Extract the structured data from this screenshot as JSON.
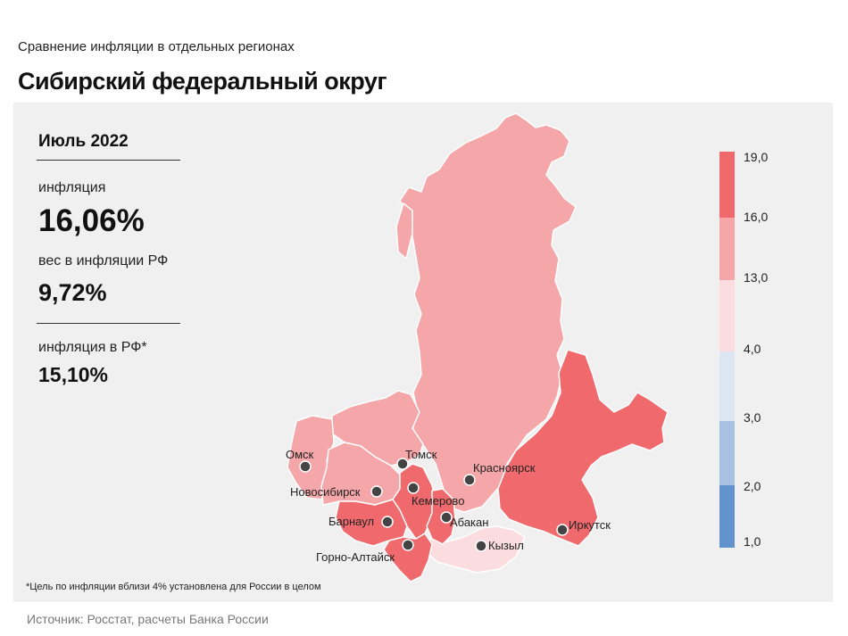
{
  "header": {
    "subtitle": "Сравнение инфляции в отдельных регионах",
    "title": "Сибирский федеральный округ"
  },
  "stats": {
    "period": "Июль 2022",
    "inflation_label": "инфляция",
    "inflation_value": "16,06%",
    "weight_label": "вес в инфляции РФ",
    "weight_value": "9,72%",
    "rf_label": "инфляция в РФ*",
    "rf_value": "15,10%"
  },
  "footnote": "*Цель по инфляции вблизи 4% установлена для России в целом",
  "source": "Источник: Росстат, расчеты Банка России",
  "legend": {
    "ticks": [
      "19,0",
      "16,0",
      "13,0",
      "4,0",
      "3,0",
      "2,0",
      "1,0"
    ],
    "bands": [
      {
        "from": "16,0",
        "to": "19,0",
        "color": "#f06a6d"
      },
      {
        "from": "13,0",
        "to": "16,0",
        "color": "#f4a6a8"
      },
      {
        "from": "4,0",
        "to": "13,0",
        "color": "#fbdde0"
      },
      {
        "from": "3,0",
        "to": "4,0",
        "color": "#dce6f2"
      },
      {
        "from": "2,0",
        "to": "3,0",
        "color": "#a9c1e0"
      },
      {
        "from": "1,0",
        "to": "2,0",
        "color": "#6293cc"
      }
    ]
  },
  "map": {
    "cities": [
      "Омск",
      "Томск",
      "Красноярск",
      "Новосибирск",
      "Кемерово",
      "Барнаул",
      "Абакан",
      "Иркутск",
      "Кызыл",
      "Горно-Алтайск"
    ],
    "region_colors": {
      "high": "#f06a6d",
      "mid": "#f4a6a8",
      "low": "#fbdde0"
    }
  }
}
